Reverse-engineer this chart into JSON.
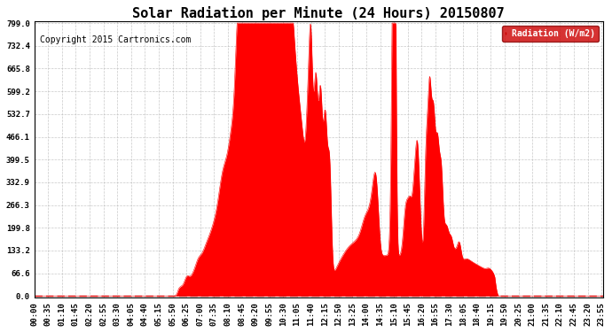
{
  "title": "Solar Radiation per Minute (24 Hours) 20150807",
  "copyright": "Copyright 2015 Cartronics.com",
  "ylabel": "Radiation (W/m2)",
  "yticks": [
    0.0,
    66.6,
    133.2,
    199.8,
    266.3,
    332.9,
    399.5,
    466.1,
    532.7,
    599.2,
    665.8,
    732.4,
    799.0
  ],
  "ymax": 799.0,
  "ymin": 0.0,
  "fill_color": "#FF0000",
  "line_color": "#FF0000",
  "dashed_line_color": "#DD0000",
  "bg_color": "#FFFFFF",
  "grid_color": "#BBBBBB",
  "legend_bg": "#CC0000",
  "legend_text_color": "#FFFFFF",
  "title_fontsize": 11,
  "copyright_fontsize": 7,
  "tick_fontsize": 6.5,
  "tick_interval_minutes": 35
}
